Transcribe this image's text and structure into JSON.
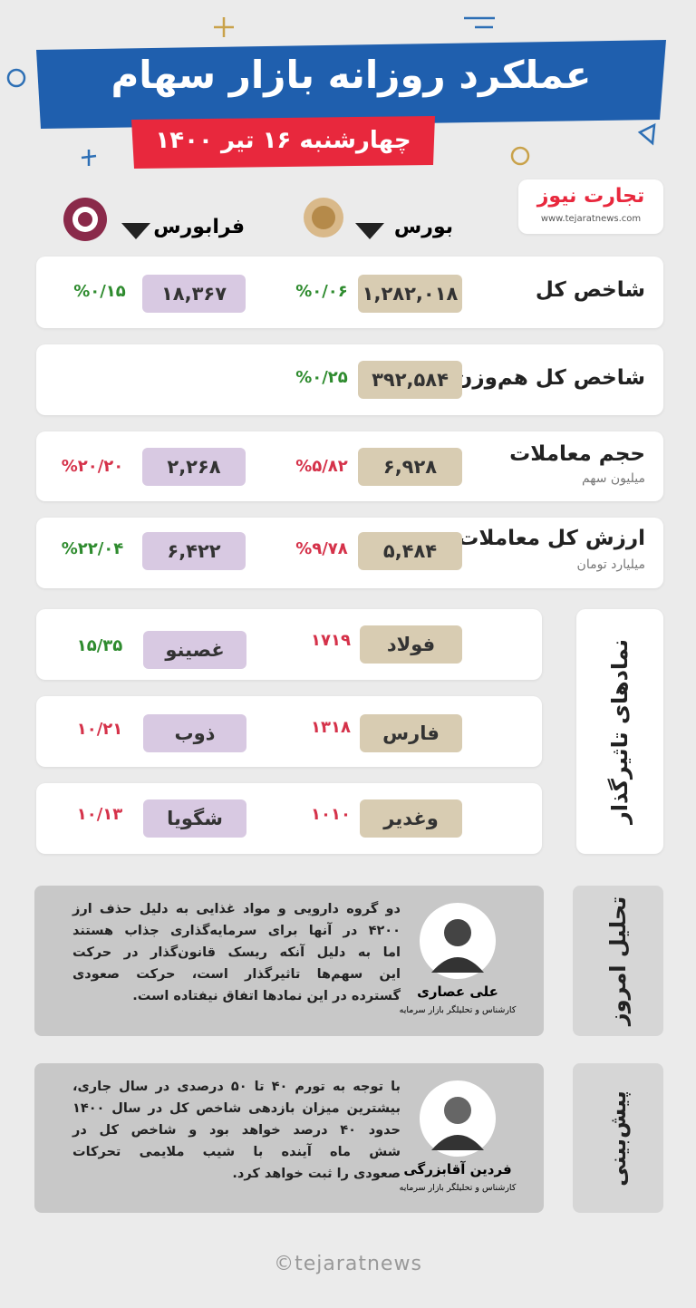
{
  "header": {
    "title": "عملکرد روزانه بازار سهام",
    "date": "چهارشنبه ۱۶ تیر ۱۴۰۰"
  },
  "logo": {
    "name": "تجارت نیوز",
    "url": "www.tejaratnews.com"
  },
  "markets": [
    "بورس",
    "فرابورس"
  ],
  "indicators": [
    {
      "label": "شاخص کل",
      "bourse": {
        "value": "۱,۲۸۲,۰۱۸",
        "change": "%۰/۰۶"
      },
      "farabourse": {
        "value": "۱۸,۳۶۷",
        "change": "%۰/۱۵"
      }
    },
    {
      "label": "شاخص کل هم‌وزن",
      "bourse": {
        "value": "۳۹۲,۵۸۴",
        "change": "%۰/۲۵"
      }
    },
    {
      "label": "حجم معاملات",
      "unit": "میلیون سهم",
      "bourse": {
        "value": "۶,۹۲۸",
        "change": "%۵/۸۲"
      },
      "farabourse": {
        "value": "۲,۲۶۸",
        "change": "%۲۰/۲۰"
      }
    },
    {
      "label": "ارزش کل معاملات",
      "unit": "میلیارد تومان",
      "bourse": {
        "value": "۵,۴۸۴",
        "change": "%۹/۷۸"
      },
      "farabourse": {
        "value": "۶,۴۲۲",
        "change": "%۲۲/۰۴"
      }
    }
  ],
  "symbols": {
    "title": "نمادهای تاثیرگذار",
    "items": [
      {
        "bourse": {
          "name": "فولاد",
          "value": "۱۷۱۹"
        },
        "farabourse": {
          "name": "غصینو",
          "value": "۱۵/۳۵"
        }
      },
      {
        "bourse": {
          "name": "فارس",
          "value": "۱۳۱۸"
        },
        "farabourse": {
          "name": "ذوب",
          "value": "۱۰/۲۱"
        }
      },
      {
        "bourse": {
          "name": "وغدیر",
          "value": "۱۰۱۰"
        },
        "farabourse": {
          "name": "شگویا",
          "value": "۱۰/۱۳"
        }
      }
    ]
  },
  "analysis": {
    "title": "تحلیل امروز",
    "author": "علی عصاری",
    "role": "کارشناس و تحلیلگر بازار سرمایه",
    "lines": [
      "دو گروه دارویی و مواد غذایی به دلیل حذف ارز",
      "۴۲۰۰ در آنها برای سرمایه‌گذاری جذاب هستند",
      "اما به دلیل آنکه ریسک قانون‌گذار در حرکت",
      "این سهم‌ها تاثیرگذار است، حرکت صعودی",
      "گسترده در این نمادها اتفاق نیفتاده است."
    ]
  },
  "forecast": {
    "title": "پیش‌بینی",
    "author": "فردین آقابزرگی",
    "role": "کارشناس و تحلیلگر بازار سرمایه",
    "lines": [
      "با توجه به تورم ۴۰ تا ۵۰ درصدی در سال جاری،",
      "بیشترین میزان بازدهی شاخص کل در سال ۱۴۰۰",
      "حدود ۴۰ درصد خواهد بود و شاخص کل در",
      "شش ماه آینده با شیب ملایمی تحرکات",
      "صعودی را ثبت خواهد کرد."
    ]
  },
  "footer": "©tejaratnews"
}
